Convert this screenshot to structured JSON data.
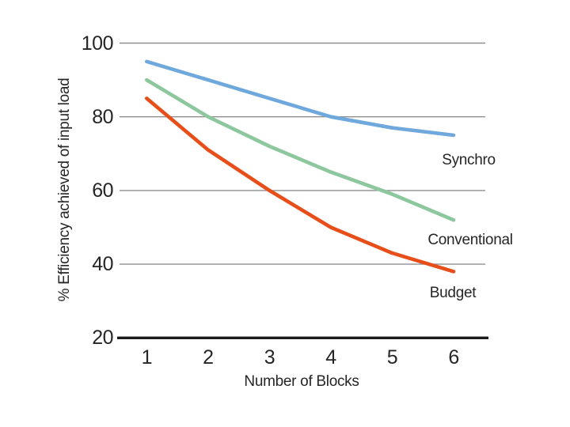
{
  "chart_data": {
    "type": "line",
    "title": "",
    "xlabel": "Number of Blocks",
    "ylabel": "% Efficiency achieved of input load",
    "x": [
      1,
      2,
      3,
      4,
      5,
      6
    ],
    "x_tick_labels": [
      "1",
      "2",
      "3",
      "4",
      "5",
      "6"
    ],
    "y_ticks": [
      100,
      80,
      60,
      40,
      20
    ],
    "y_tick_labels": [
      "100",
      "80",
      "60",
      "40",
      "20"
    ],
    "ylim": [
      20,
      100
    ],
    "gridlines": {
      "horizontal_at": [
        100,
        80,
        60,
        40
      ],
      "color": "#8f8f8f"
    },
    "baseline_value": 20,
    "legend_position": "inline-right-of-lines",
    "series": [
      {
        "name": "Synchro",
        "color": "#6fa8dc",
        "values": [
          95,
          90,
          85,
          80,
          77,
          75
        ]
      },
      {
        "name": "Conventional",
        "color": "#8cc79e",
        "values": [
          90,
          80,
          72,
          65,
          59,
          52
        ]
      },
      {
        "name": "Budget",
        "color": "#e84e1a",
        "values": [
          85,
          71,
          60,
          50,
          43,
          38
        ]
      }
    ],
    "colors": {
      "axis": "#1a1a1a",
      "text": "#262626",
      "background": "#ffffff"
    }
  }
}
